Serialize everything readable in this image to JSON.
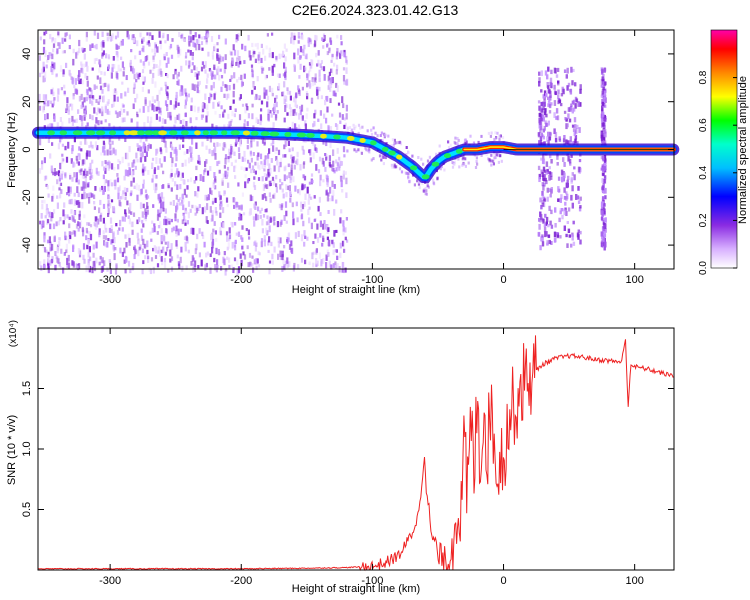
{
  "title": "C2E6.2024.323.01.42.G13",
  "chart_data": [
    {
      "type": "heatmap",
      "xlabel": "Height of straight line (km)",
      "ylabel": "Frequency (Hz)",
      "xlim": [
        -355,
        130
      ],
      "ylim": [
        -50,
        50
      ],
      "xticks": [
        -300,
        -200,
        -100,
        0,
        100
      ],
      "yticks": [
        -40,
        -20,
        0,
        20,
        40
      ],
      "colorbar": {
        "label": "Normalized spectral amplitude",
        "range": [
          0,
          1
        ],
        "ticks": [
          "0.0",
          "0.2",
          "0.4",
          "0.6",
          "0.8"
        ],
        "colors": [
          "#ffffff",
          "#b070ff",
          "#6600cc",
          "#0000ff",
          "#00ffff",
          "#00ff00",
          "#ffff00",
          "#ff8800",
          "#ff0000",
          "#ff00aa"
        ]
      },
      "ridge": {
        "x": [
          -350,
          -300,
          -250,
          -200,
          -150,
          -120,
          -100,
          -90,
          -80,
          -70,
          -60,
          -55,
          -50,
          -45,
          -40,
          -30,
          -20,
          -10,
          0,
          10,
          30,
          60,
          90,
          130
        ],
        "y": [
          7,
          7,
          7,
          7,
          6,
          5,
          3,
          0,
          -3,
          -7,
          -12,
          -8,
          -5,
          -3,
          -2,
          0,
          0,
          1,
          1,
          0,
          0,
          0,
          0,
          0
        ]
      }
    },
    {
      "type": "line",
      "xlabel": "Height of straight line (km)",
      "ylabel": "SNR (10 * v/v)",
      "y_multiplier": "(x10⁴)",
      "xlim": [
        -355,
        130
      ],
      "ylim": [
        0,
        2.0
      ],
      "xticks": [
        -300,
        -200,
        -100,
        0,
        100
      ],
      "yticks": [
        "0.5",
        "1.0",
        "1.5"
      ],
      "color": "#ee2222",
      "series": [
        {
          "x": [
            -355,
            -300,
            -250,
            -200,
            -150,
            -120,
            -100,
            -90,
            -80,
            -75,
            -70,
            -65,
            -62,
            -60,
            -58,
            -55,
            -50,
            -45,
            -40,
            -38,
            -35,
            -32,
            -30,
            -28,
            -25,
            -22,
            -20,
            -18,
            -15,
            -12,
            -10,
            -8,
            -5,
            0,
            5,
            10,
            15,
            20,
            30,
            40,
            50,
            60,
            70,
            80,
            90,
            93,
            95,
            97,
            100,
            110,
            120,
            130
          ],
          "y": [
            0.01,
            0.01,
            0.01,
            0.01,
            0.015,
            0.02,
            0.03,
            0.06,
            0.12,
            0.2,
            0.3,
            0.45,
            0.75,
            1.0,
            0.55,
            0.3,
            0.12,
            0.08,
            0.1,
            0.3,
            0.6,
            0.4,
            1.1,
            0.6,
            1.2,
            0.8,
            1.55,
            0.9,
            1.3,
            1.0,
            1.4,
            1.1,
            0.9,
            0.95,
            1.3,
            1.4,
            1.55,
            1.6,
            1.7,
            1.75,
            1.77,
            1.76,
            1.74,
            1.73,
            1.72,
            1.9,
            1.35,
            1.7,
            1.68,
            1.66,
            1.63,
            1.6
          ]
        }
      ]
    }
  ]
}
